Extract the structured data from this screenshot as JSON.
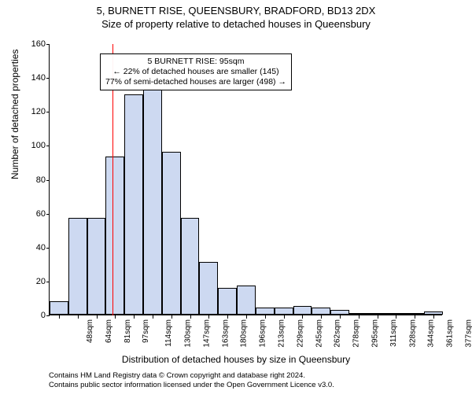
{
  "titles": {
    "line1": "5, BURNETT RISE, QUEENSBURY, BRADFORD, BD13 2DX",
    "line2": "Size of property relative to detached houses in Queensbury"
  },
  "ylabel": "Number of detached properties",
  "xlabel": "Distribution of detached houses by size in Queensbury",
  "chart": {
    "type": "histogram",
    "ylim": [
      0,
      160
    ],
    "ytick_step": 20,
    "xtick_labels": [
      "48sqm",
      "64sqm",
      "81sqm",
      "97sqm",
      "114sqm",
      "130sqm",
      "147sqm",
      "163sqm",
      "180sqm",
      "196sqm",
      "213sqm",
      "229sqm",
      "245sqm",
      "262sqm",
      "278sqm",
      "295sqm",
      "311sqm",
      "328sqm",
      "344sqm",
      "361sqm",
      "377sqm"
    ],
    "values": [
      8,
      57,
      57,
      93,
      130,
      133,
      96,
      57,
      31,
      16,
      17,
      4,
      4,
      5,
      4,
      3,
      1,
      1,
      0.5,
      1,
      2
    ],
    "bar_fill": "#cdd9f1",
    "bar_stroke": "#000000",
    "bar_stroke_width": 0.5,
    "background": "#ffffff",
    "marker_line": {
      "color": "#ff0000",
      "position_index": 2.85
    }
  },
  "annotation": {
    "line1": "5 BURNETT RISE: 95sqm",
    "line2": "← 22% of detached houses are smaller (145)",
    "line3": "77% of semi-detached houses are larger (498) →"
  },
  "attribution": {
    "line1": "Contains HM Land Registry data © Crown copyright and database right 2024.",
    "line2": "Contains public sector information licensed under the Open Government Licence v3.0."
  }
}
